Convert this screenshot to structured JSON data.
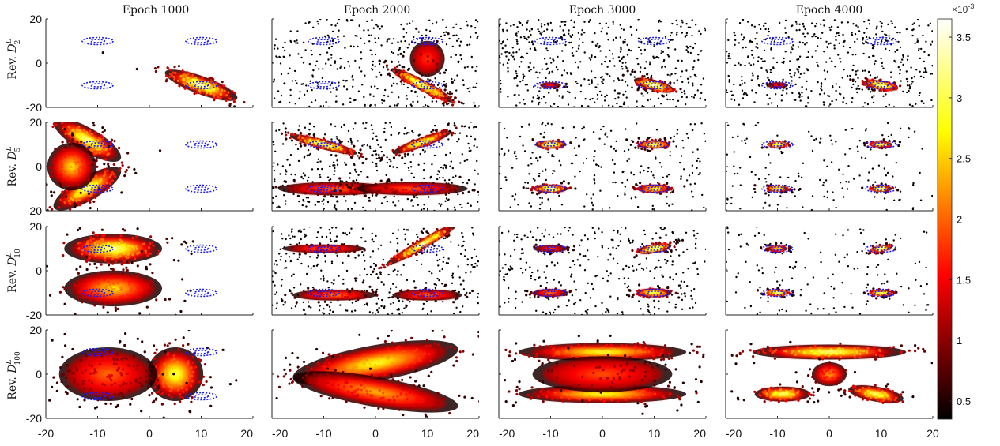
{
  "figure": {
    "columns": [
      {
        "title": "Epoch 1000"
      },
      {
        "title": "Epoch 2000"
      },
      {
        "title": "Epoch 3000"
      },
      {
        "title": "Epoch 4000"
      }
    ],
    "rows": [
      {
        "label_prefix": "Rev. ",
        "label_main": "D",
        "label_sup": "L",
        "label_sub": "2"
      },
      {
        "label_prefix": "Rev. ",
        "label_main": "D",
        "label_sup": "L",
        "label_sub": "5"
      },
      {
        "label_prefix": "Rev. ",
        "label_main": "D",
        "label_sup": "L",
        "label_sub": "10"
      },
      {
        "label_prefix": "Rev. ",
        "label_main": "D",
        "label_sup": "L",
        "label_sub": "100"
      }
    ],
    "colorbar": {
      "exponent_label": "×10",
      "exponent_power": "-3",
      "ticks": [
        {
          "value": 0.5,
          "label": "0.5"
        },
        {
          "value": 1,
          "label": "1"
        },
        {
          "value": 1.5,
          "label": "1.5"
        },
        {
          "value": 2,
          "label": "2"
        },
        {
          "value": 2.5,
          "label": "2.5"
        },
        {
          "value": 3,
          "label": "3"
        },
        {
          "value": 3.5,
          "label": "3.5"
        }
      ],
      "range": [
        0.35,
        3.65
      ],
      "colormap": "hot"
    }
  },
  "chart_data": {
    "type": "scatter",
    "subtype": "density heatmap with contour lines and scatter points",
    "xlim": [
      -20,
      20
    ],
    "ylim": [
      -20,
      20
    ],
    "xticks": [
      {
        "value": -20,
        "label": "-20"
      },
      {
        "value": -10,
        "label": "-10"
      },
      {
        "value": 0,
        "label": "0"
      },
      {
        "value": 10,
        "label": "10"
      },
      {
        "value": 20,
        "label": "20"
      }
    ],
    "yticks": [
      {
        "value": 20,
        "label": "20"
      },
      {
        "value": 0,
        "label": "0"
      },
      {
        "value": -20,
        "label": "-20"
      }
    ],
    "target_modes": [
      [
        -10,
        10
      ],
      [
        10,
        10
      ],
      [
        -10,
        -10
      ],
      [
        10,
        -10
      ]
    ],
    "target_mode_rx": 3,
    "target_mode_ry": 1.6,
    "panels": [
      {
        "row": 0,
        "col": 0,
        "show_targets": true,
        "blobs": [
          {
            "x": 10,
            "y": -10,
            "sx": 5.5,
            "sy": 3,
            "rot": -20,
            "n": 700,
            "peak": 1.0
          }
        ],
        "scatter": 0
      },
      {
        "row": 0,
        "col": 1,
        "show_targets": true,
        "blobs": [
          {
            "x": 9,
            "y": -10,
            "sx": 5,
            "sy": 1.8,
            "rot": -28,
            "n": 700,
            "peak": 1.0
          },
          {
            "x": 10,
            "y": 2,
            "sx": 2.5,
            "sy": 6,
            "rot": 0,
            "n": 120,
            "peak": 0.25
          }
        ],
        "scatter": 380
      },
      {
        "row": 0,
        "col": 2,
        "show_targets": true,
        "blobs": [
          {
            "x": 10,
            "y": -10,
            "sx": 3,
            "sy": 1.8,
            "rot": -15,
            "n": 500,
            "peak": 1.0
          },
          {
            "x": -10,
            "y": -10,
            "sx": 1.5,
            "sy": 1,
            "rot": 0,
            "n": 40,
            "peak": 0.25
          }
        ],
        "scatter": 520
      },
      {
        "row": 0,
        "col": 3,
        "show_targets": true,
        "blobs": [
          {
            "x": 10,
            "y": -10,
            "sx": 2.5,
            "sy": 1.5,
            "rot": -10,
            "n": 450,
            "peak": 1.0
          },
          {
            "x": -10,
            "y": -10,
            "sx": 1.5,
            "sy": 1,
            "rot": 0,
            "n": 40,
            "peak": 0.25
          }
        ],
        "scatter": 480
      },
      {
        "row": 1,
        "col": 0,
        "show_targets": true,
        "blobs": [
          {
            "x": -12,
            "y": 12,
            "sx": 5.5,
            "sy": 4,
            "rot": -30,
            "n": 650,
            "peak": 0.9
          },
          {
            "x": -12,
            "y": -10,
            "sx": 5.5,
            "sy": 4,
            "rot": 30,
            "n": 650,
            "peak": 0.9
          },
          {
            "x": -15,
            "y": 0,
            "sx": 3.5,
            "sy": 8,
            "rot": 0,
            "n": 500,
            "peak": 0.6
          }
        ],
        "scatter": 0
      },
      {
        "row": 1,
        "col": 1,
        "show_targets": true,
        "blobs": [
          {
            "x": -10,
            "y": 10,
            "sx": 5,
            "sy": 1.6,
            "rot": -15,
            "n": 500,
            "peak": 1.0
          },
          {
            "x": 9,
            "y": 11,
            "sx": 4.5,
            "sy": 1.6,
            "rot": 20,
            "n": 420,
            "peak": 0.9
          },
          {
            "x": -8,
            "y": -10,
            "sx": 8,
            "sy": 2.2,
            "rot": 0,
            "n": 500,
            "peak": 0.4
          },
          {
            "x": 7,
            "y": -10,
            "sx": 8,
            "sy": 2.2,
            "rot": 0,
            "n": 450,
            "peak": 0.35
          }
        ],
        "scatter": 420
      },
      {
        "row": 1,
        "col": 2,
        "show_targets": true,
        "blobs": [
          {
            "x": -10,
            "y": 10,
            "sx": 2.2,
            "sy": 1.4,
            "rot": 0,
            "n": 350,
            "peak": 1.0
          },
          {
            "x": 10,
            "y": 10,
            "sx": 2.2,
            "sy": 1.4,
            "rot": 0,
            "n": 350,
            "peak": 0.95
          },
          {
            "x": -10,
            "y": -10,
            "sx": 2.5,
            "sy": 1.4,
            "rot": 0,
            "n": 350,
            "peak": 1.0
          },
          {
            "x": 10,
            "y": -10,
            "sx": 2.5,
            "sy": 1.4,
            "rot": 0,
            "n": 350,
            "peak": 0.85
          }
        ],
        "scatter": 230
      },
      {
        "row": 1,
        "col": 3,
        "show_targets": true,
        "blobs": [
          {
            "x": -10,
            "y": 10,
            "sx": 1.5,
            "sy": 1.0,
            "rot": 0,
            "n": 300,
            "peak": 1.0
          },
          {
            "x": 10,
            "y": 10,
            "sx": 1.6,
            "sy": 1.0,
            "rot": 0,
            "n": 300,
            "peak": 1.0
          },
          {
            "x": -10,
            "y": -10,
            "sx": 1.6,
            "sy": 1.0,
            "rot": 0,
            "n": 300,
            "peak": 1.0
          },
          {
            "x": 10,
            "y": -10,
            "sx": 1.6,
            "sy": 1.0,
            "rot": 0,
            "n": 300,
            "peak": 1.0
          }
        ],
        "scatter": 150
      },
      {
        "row": 2,
        "col": 0,
        "show_targets": true,
        "blobs": [
          {
            "x": -7,
            "y": 10,
            "sx": 7,
            "sy": 5,
            "rot": 0,
            "n": 900,
            "peak": 0.9
          },
          {
            "x": -7,
            "y": -8,
            "sx": 7,
            "sy": 6,
            "rot": 0,
            "n": 800,
            "peak": 0.6
          }
        ],
        "scatter": 0
      },
      {
        "row": 2,
        "col": 1,
        "show_targets": true,
        "blobs": [
          {
            "x": 9,
            "y": 12,
            "sx": 6,
            "sy": 1.6,
            "rot": 30,
            "n": 550,
            "peak": 1.0
          },
          {
            "x": -10,
            "y": 10,
            "sx": 6,
            "sy": 1.4,
            "rot": 0,
            "n": 250,
            "peak": 0.4
          },
          {
            "x": -8,
            "y": -11,
            "sx": 6,
            "sy": 1.8,
            "rot": 0,
            "n": 300,
            "peak": 0.45
          },
          {
            "x": 10,
            "y": -11,
            "sx": 5,
            "sy": 1.8,
            "rot": 0,
            "n": 250,
            "peak": 0.4
          }
        ],
        "scatter": 380
      },
      {
        "row": 2,
        "col": 2,
        "show_targets": true,
        "blobs": [
          {
            "x": 10,
            "y": 10,
            "sx": 2.5,
            "sy": 1.5,
            "rot": 10,
            "n": 420,
            "peak": 1.0
          },
          {
            "x": 10,
            "y": -10,
            "sx": 2.5,
            "sy": 1.5,
            "rot": 0,
            "n": 380,
            "peak": 0.9
          },
          {
            "x": -10,
            "y": 10,
            "sx": 2.5,
            "sy": 1.1,
            "rot": 0,
            "n": 180,
            "peak": 0.4
          },
          {
            "x": -10,
            "y": -10,
            "sx": 2.5,
            "sy": 1.3,
            "rot": 0,
            "n": 250,
            "peak": 0.55
          }
        ],
        "scatter": 320
      },
      {
        "row": 2,
        "col": 3,
        "show_targets": true,
        "blobs": [
          {
            "x": -10,
            "y": 10,
            "sx": 1.4,
            "sy": 1.0,
            "rot": 0,
            "n": 280,
            "peak": 0.8
          },
          {
            "x": 10,
            "y": 10,
            "sx": 1.6,
            "sy": 1.1,
            "rot": 10,
            "n": 320,
            "peak": 1.0
          },
          {
            "x": -10,
            "y": -10,
            "sx": 1.6,
            "sy": 1.0,
            "rot": 0,
            "n": 300,
            "peak": 1.0
          },
          {
            "x": 10,
            "y": -10,
            "sx": 1.6,
            "sy": 1.0,
            "rot": 0,
            "n": 300,
            "peak": 1.0
          }
        ],
        "scatter": 140
      },
      {
        "row": 3,
        "col": 0,
        "show_targets": true,
        "blobs": [
          {
            "x": 5,
            "y": 0,
            "sx": 4,
            "sy": 9,
            "rot": 0,
            "n": 800,
            "peak": 0.8
          },
          {
            "x": -8,
            "y": 0,
            "sx": 7,
            "sy": 9,
            "rot": 0,
            "n": 900,
            "peak": 0.35
          }
        ],
        "scatter": 0
      },
      {
        "row": 3,
        "col": 1,
        "show_targets": false,
        "blobs": [
          {
            "x": 0,
            "y": 5,
            "sx": 12,
            "sy": 6,
            "rot": 10,
            "n": 900,
            "peak": 0.7
          },
          {
            "x": 0,
            "y": -8,
            "sx": 12,
            "sy": 5,
            "rot": -10,
            "n": 800,
            "peak": 0.5
          }
        ],
        "scatter": 0
      },
      {
        "row": 3,
        "col": 2,
        "show_targets": false,
        "blobs": [
          {
            "x": 0,
            "y": 10,
            "sx": 12,
            "sy": 3,
            "rot": 0,
            "n": 700,
            "peak": 0.75
          },
          {
            "x": 0,
            "y": -9,
            "sx": 12,
            "sy": 3,
            "rot": 0,
            "n": 700,
            "peak": 0.75
          },
          {
            "x": 0,
            "y": 0,
            "sx": 10,
            "sy": 6,
            "rot": 0,
            "n": 400,
            "peak": 0.3
          }
        ],
        "scatter": 0
      },
      {
        "row": 3,
        "col": 3,
        "show_targets": false,
        "blobs": [
          {
            "x": 0,
            "y": 10,
            "sx": 11,
            "sy": 2.5,
            "rot": 0,
            "n": 650,
            "peak": 0.9
          },
          {
            "x": -9,
            "y": -9,
            "sx": 4,
            "sy": 2.5,
            "rot": 0,
            "n": 400,
            "peak": 0.9
          },
          {
            "x": 9,
            "y": -9,
            "sx": 4,
            "sy": 2.5,
            "rot": -10,
            "n": 400,
            "peak": 0.9
          },
          {
            "x": 0,
            "y": 0,
            "sx": 2.5,
            "sy": 4,
            "rot": 0,
            "n": 200,
            "peak": 0.5
          }
        ],
        "scatter": 0
      }
    ]
  }
}
